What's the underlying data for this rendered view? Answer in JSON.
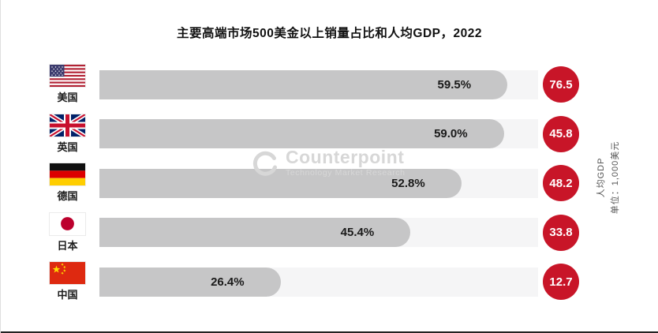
{
  "title": "主要高端市场500美金以上销量占比和人均GDP，2022",
  "watermark": {
    "brand": "Counterpoint",
    "tagline": "Technology Market Research"
  },
  "right_axis_label": {
    "line1": "人均GDP",
    "line2": "单位：1,000美元"
  },
  "colors": {
    "bar": "#c6c6c7",
    "track": "#f5f5f6",
    "gdp_circle": "#c81528",
    "watermark": "#d7d7d7"
  },
  "rows": [
    {
      "country": "美国",
      "flag": "us",
      "share_label": "59.5%",
      "share_value": 59.5,
      "gdp_label": "76.5"
    },
    {
      "country": "英国",
      "flag": "uk",
      "share_label": "59.0%",
      "share_value": 59.0,
      "gdp_label": "45.8"
    },
    {
      "country": "德国",
      "flag": "de",
      "share_label": "52.8%",
      "share_value": 52.8,
      "gdp_label": "48.2"
    },
    {
      "country": "日本",
      "flag": "jp",
      "share_label": "45.4%",
      "share_value": 45.4,
      "gdp_label": "33.8"
    },
    {
      "country": "中国",
      "flag": "cn",
      "share_label": "26.4%",
      "share_value": 26.4,
      "gdp_label": "12.7"
    }
  ],
  "chart_data": {
    "type": "bar",
    "orientation": "horizontal",
    "title": "主要高端市场500美金以上销量占比和人均GDP，2022",
    "categories": [
      "美国",
      "英国",
      "德国",
      "日本",
      "中国"
    ],
    "series": [
      {
        "name": "500美金以上销量占比",
        "unit": "%",
        "values": [
          59.5,
          59.0,
          52.8,
          45.4,
          26.4
        ]
      },
      {
        "name": "人均GDP",
        "unit": "1,000美元",
        "values": [
          76.5,
          45.8,
          48.2,
          33.8,
          12.7
        ]
      }
    ],
    "value_labels": [
      "59.5%",
      "59.0%",
      "52.8%",
      "45.4%",
      "26.4%"
    ],
    "gdp_labels": [
      "76.5",
      "45.8",
      "48.2",
      "33.8",
      "12.7"
    ],
    "xlim": [
      0,
      64
    ],
    "grid": false,
    "legend": false,
    "notes": "GDP per capita shown in red circles at right of each bar; axis label rotated on right edge"
  }
}
